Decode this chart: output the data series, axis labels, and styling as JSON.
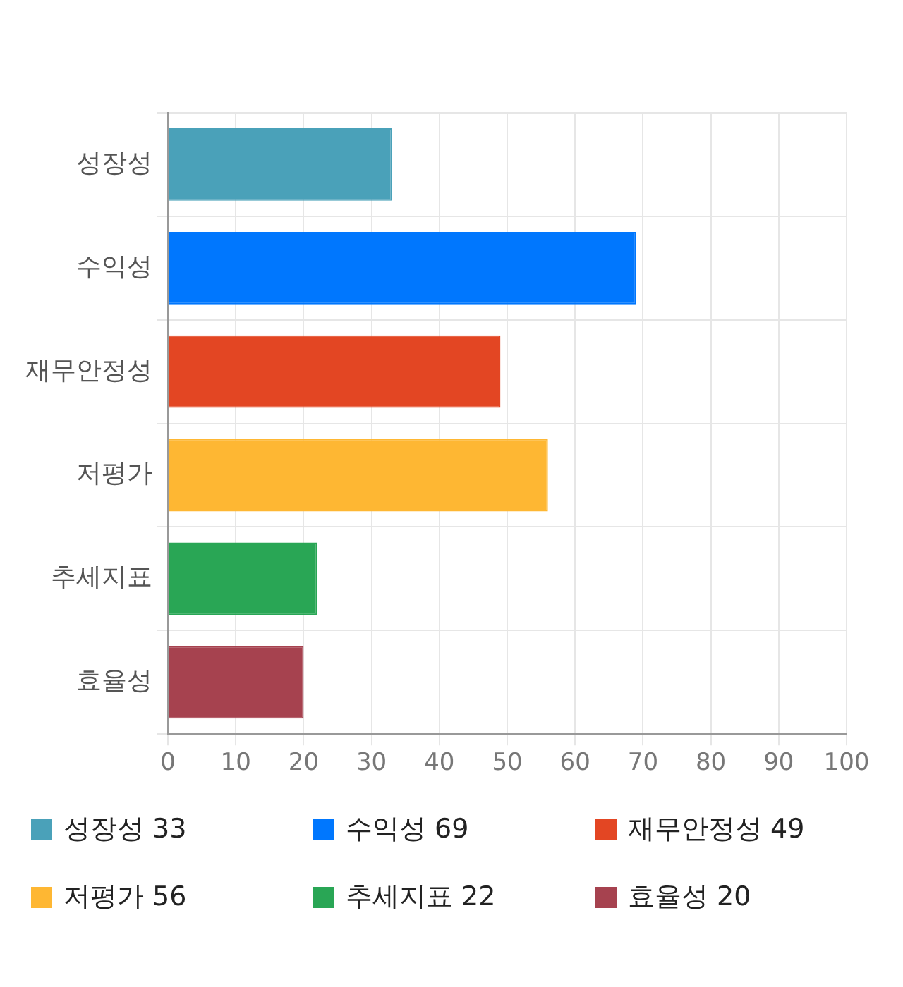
{
  "chart_data": {
    "type": "bar",
    "orientation": "horizontal",
    "categories": [
      "성장성",
      "수익성",
      "재무안정성",
      "저평가",
      "추세지표",
      "효율성"
    ],
    "series": [
      {
        "name": "성장성 33",
        "color": "#4aa1b9",
        "values": [
          33,
          null,
          null,
          null,
          null,
          null
        ]
      },
      {
        "name": "수익성 69",
        "color": "#0077fe",
        "values": [
          null,
          69,
          null,
          null,
          null,
          null
        ]
      },
      {
        "name": "재무안정성 49",
        "color": "#e34623",
        "values": [
          null,
          null,
          49,
          null,
          null,
          null
        ]
      },
      {
        "name": "저평가 56",
        "color": "#feb733",
        "values": [
          null,
          null,
          null,
          56,
          null,
          null
        ]
      },
      {
        "name": "추세지표 22",
        "color": "#29a655",
        "values": [
          null,
          null,
          null,
          null,
          22,
          null
        ]
      },
      {
        "name": "효율성 20",
        "color": "#a6424f",
        "values": [
          null,
          null,
          null,
          null,
          null,
          20
        ]
      }
    ],
    "xlim": [
      0,
      100
    ],
    "xticks": [
      0,
      10,
      20,
      30,
      40,
      50,
      60,
      70,
      80,
      90,
      100
    ],
    "grid": true,
    "legend": "bottom"
  }
}
